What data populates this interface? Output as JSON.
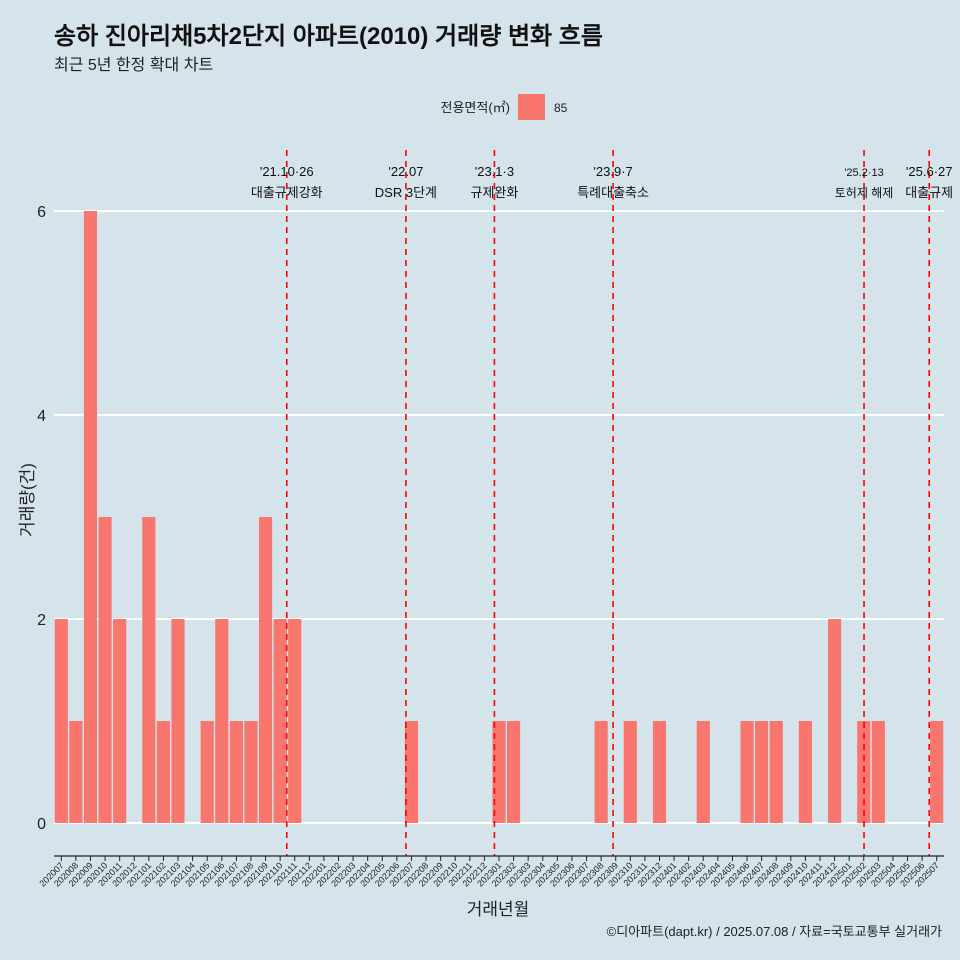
{
  "title": "송하 진아리채5차2단지 아파트(2010) 거래량 변화 흐름",
  "subtitle": "최근 5년 한정 확대 차트",
  "footer": "©디아파트(dapt.kr) / 2025.07.08 / 자료=국토교통부 실거래가",
  "legend": {
    "title": "전용면적(㎡)",
    "label": "85",
    "color": "#f8766d"
  },
  "colors": {
    "background": "#d5e3eb",
    "bar": "#f8766d",
    "grid": "#ffffff",
    "event": "#ff0000"
  },
  "chart_data": {
    "type": "bar",
    "xlabel": "거래년월",
    "ylabel": "거래량(건)",
    "ylim": [
      0,
      6
    ],
    "yticks": [
      0,
      2,
      4,
      6
    ],
    "categories": [
      "202007",
      "202008",
      "202009",
      "202010",
      "202011",
      "202012",
      "202101",
      "202102",
      "202103",
      "202104",
      "202105",
      "202106",
      "202107",
      "202108",
      "202109",
      "202110",
      "202111",
      "202112",
      "202201",
      "202202",
      "202203",
      "202204",
      "202205",
      "202206",
      "202207",
      "202208",
      "202209",
      "202210",
      "202211",
      "202212",
      "202301",
      "202302",
      "202303",
      "202304",
      "202305",
      "202306",
      "202307",
      "202308",
      "202309",
      "202310",
      "202311",
      "202312",
      "202401",
      "202402",
      "202403",
      "202404",
      "202405",
      "202406",
      "202407",
      "202408",
      "202409",
      "202410",
      "202411",
      "202412",
      "202501",
      "202502",
      "202503",
      "202504",
      "202505",
      "202506",
      "202507"
    ],
    "series": [
      {
        "name": "85",
        "values": [
          2,
          1,
          6,
          3,
          2,
          0,
          3,
          1,
          2,
          0,
          1,
          2,
          1,
          1,
          3,
          2,
          2,
          0,
          0,
          0,
          0,
          0,
          0,
          0,
          1,
          0,
          0,
          0,
          0,
          0,
          1,
          1,
          0,
          0,
          0,
          0,
          0,
          1,
          0,
          1,
          0,
          1,
          0,
          0,
          1,
          0,
          0,
          1,
          1,
          1,
          0,
          1,
          0,
          2,
          0,
          1,
          1,
          0,
          0,
          0,
          1
        ]
      }
    ],
    "events": [
      {
        "date": "2021-10-26",
        "label1": "'21.10·26",
        "label2": "대출규제강화"
      },
      {
        "date": "2022-07-01",
        "label1": "'22.07",
        "label2": "DSR 3단계"
      },
      {
        "date": "2023-01-03",
        "label1": "'23.1·3",
        "label2": "규제완화"
      },
      {
        "date": "2023-09-07",
        "label1": "'23.9·7",
        "label2": "특례대출축소"
      },
      {
        "date": "2025-02-13",
        "label1": "'25.2·13",
        "label2": "토허제 해제"
      },
      {
        "date": "2025-06-27",
        "label1": "'25.6·27",
        "label2": "대출규제"
      }
    ]
  }
}
